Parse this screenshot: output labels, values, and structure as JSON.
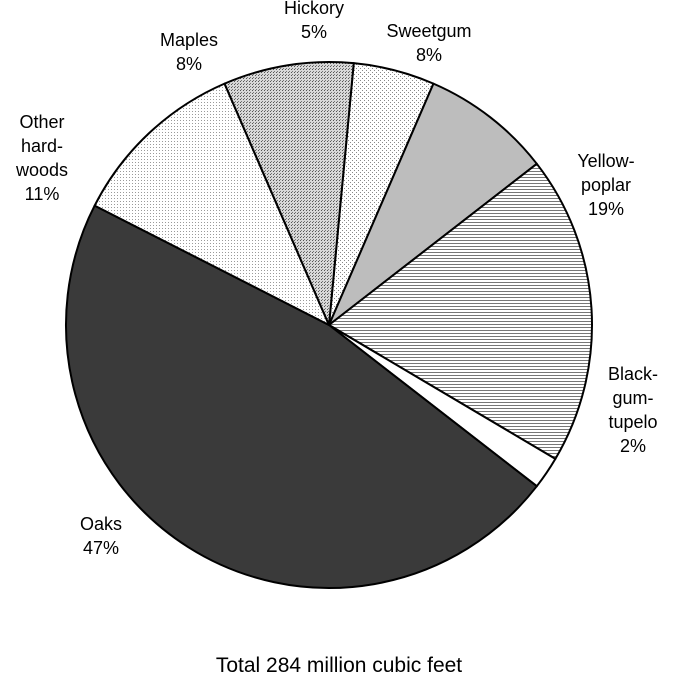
{
  "chart_data": {
    "type": "pie",
    "slices": [
      {
        "label_lines": [
          "Hickory",
          "5%"
        ],
        "value": 5,
        "fill": "dots-light"
      },
      {
        "label_lines": [
          "Sweetgum",
          "8%"
        ],
        "value": 8,
        "fill": "#bdbdbd"
      },
      {
        "label_lines": [
          "Yellow-",
          "poplar",
          "19%"
        ],
        "value": 19,
        "fill": "hlines"
      },
      {
        "label_lines": [
          "Black-",
          "gum-",
          "tupelo",
          "2%"
        ],
        "value": 2,
        "fill": "#ffffff"
      },
      {
        "label_lines": [
          "Oaks",
          "47%"
        ],
        "value": 47,
        "fill": "#3a3a3a"
      },
      {
        "label_lines": [
          "Other",
          "hard-",
          "woods",
          "11%"
        ],
        "value": 11,
        "fill": "dots-fine"
      },
      {
        "label_lines": [
          "Maples",
          "8%"
        ],
        "value": 8,
        "fill": "dots-dense"
      }
    ],
    "footer": "Total 284 million cubic feet"
  }
}
